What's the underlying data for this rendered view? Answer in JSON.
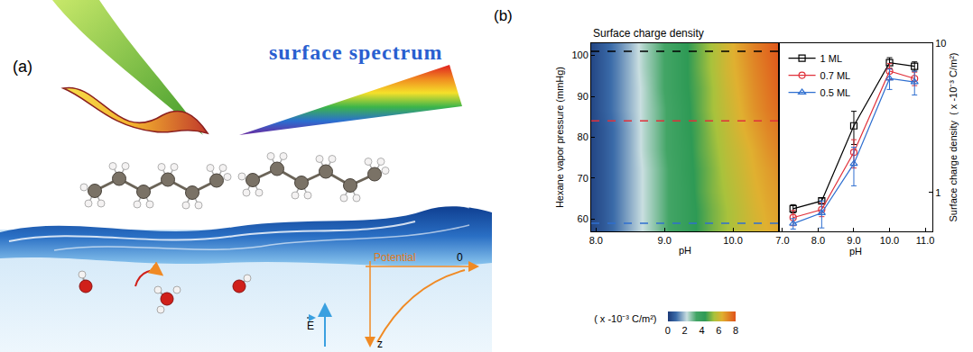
{
  "diagram": {
    "label": "(a)",
    "title": "surface spectrum",
    "potential_axis": {
      "label": "Potential",
      "zero": "0",
      "depth": "z"
    },
    "field": "E"
  },
  "chart_data": [
    {
      "type": "heatmap",
      "panel": "(b)",
      "title": "Surface charge density",
      "x_label": "pH",
      "y_label": "Hexane vapor pressure (mmHg)",
      "x": [
        7.9,
        8.1,
        8.3,
        8.5,
        8.7,
        8.9,
        9.1,
        9.3,
        9.5,
        9.7,
        9.9,
        10.1,
        10.3,
        10.5,
        10.7
      ],
      "y": [
        57,
        62,
        67,
        72,
        77,
        82,
        87,
        92,
        97,
        102
      ],
      "cells": [
        [
          0.2,
          0.6,
          1.1,
          1.7,
          2.3,
          2.9,
          3.5,
          4.0,
          4.5,
          5.0,
          5.4,
          5.8,
          6.1,
          6.4,
          6.6
        ],
        [
          0.2,
          0.6,
          1.1,
          1.7,
          2.3,
          2.9,
          3.5,
          4.0,
          4.5,
          5.0,
          5.4,
          5.8,
          6.2,
          6.5,
          6.7
        ],
        [
          0.2,
          0.6,
          1.1,
          1.7,
          2.3,
          2.9,
          3.5,
          4.0,
          4.6,
          5.1,
          5.5,
          5.9,
          6.3,
          6.6,
          6.8
        ],
        [
          0.2,
          0.6,
          1.1,
          1.7,
          2.3,
          2.9,
          3.5,
          4.1,
          4.6,
          5.1,
          5.6,
          6.0,
          6.4,
          6.7,
          7.0
        ],
        [
          0.2,
          0.6,
          1.1,
          1.7,
          2.4,
          3.0,
          3.6,
          4.1,
          4.7,
          5.2,
          5.7,
          6.1,
          6.5,
          6.9,
          7.2
        ],
        [
          0.2,
          0.6,
          1.1,
          1.7,
          2.4,
          3.0,
          3.6,
          4.2,
          4.7,
          5.3,
          5.8,
          6.3,
          6.7,
          7.1,
          7.4
        ],
        [
          0.2,
          0.7,
          1.2,
          1.8,
          2.4,
          3.0,
          3.6,
          4.2,
          4.8,
          5.4,
          5.9,
          6.4,
          6.9,
          7.3,
          7.6
        ],
        [
          0.2,
          0.7,
          1.2,
          1.8,
          2.4,
          3.1,
          3.7,
          4.3,
          4.8,
          5.4,
          6.0,
          6.5,
          7.0,
          7.4,
          7.8
        ],
        [
          0.2,
          0.7,
          1.2,
          1.8,
          2.5,
          3.1,
          3.7,
          4.3,
          4.9,
          5.5,
          6.1,
          6.6,
          7.1,
          7.5,
          7.9
        ],
        [
          0.2,
          0.7,
          1.2,
          1.8,
          2.5,
          3.1,
          3.7,
          4.3,
          4.9,
          5.5,
          6.1,
          6.7,
          7.2,
          7.6,
          8.0
        ]
      ],
      "xlim": [
        7.93,
        10.67
      ],
      "xticks": [
        {
          "value": 8,
          "label": "8.0"
        },
        {
          "value": 9,
          "label": "9.0"
        },
        {
          "value": 10,
          "label": "10.0"
        }
      ],
      "ylim": [
        57,
        103
      ],
      "yticks": [
        60,
        70,
        80,
        90,
        100
      ],
      "colorbar": {
        "range": [
          0,
          8
        ],
        "ticks": [
          0,
          2,
          4,
          6,
          8
        ],
        "label": "( x -10⁻³ C/m²)"
      },
      "reference_lines": [
        {
          "value": 101,
          "color": "#000000"
        },
        {
          "value": 84,
          "color": "#e0303a"
        },
        {
          "value": 59,
          "color": "#2f6fd0"
        }
      ],
      "line_style": "dash"
    },
    {
      "type": "scatter",
      "x_label": "pH",
      "y_label": "Surface charge density  ( x -10⁻³ C/m²)",
      "x": [
        7.3,
        8.1,
        9.0,
        10.0,
        10.7
      ],
      "series": [
        {
          "name": "1 ML",
          "color": "#000000",
          "marker": "square-open",
          "line_style": "solid",
          "values": [
            0.78,
            0.88,
            2.8,
            7.4,
            7.0
          ],
          "errors": [
            0.05,
            0.04,
            0.7,
            0.6,
            0.5
          ]
        },
        {
          "name": "0.7 ML",
          "color": "#e0303a",
          "marker": "circle-open",
          "line_style": "solid",
          "values": [
            0.68,
            0.77,
            1.86,
            6.5,
            5.8
          ],
          "errors": [
            0.08,
            0.08,
            0.4,
            0.8,
            0.6
          ]
        },
        {
          "name": "0.5 ML",
          "color": "#2f6fd0",
          "marker": "triangle-up-open",
          "line_style": "solid",
          "values": [
            0.62,
            0.73,
            1.56,
            5.8,
            5.5
          ],
          "errors": [
            0.05,
            0.15,
            0.45,
            0.9,
            1.0
          ]
        }
      ],
      "xlim": [
        6.9,
        11.2
      ],
      "xticks": [
        {
          "value": 7,
          "label": "7.0"
        },
        {
          "value": 8,
          "label": "8.0"
        },
        {
          "value": 9,
          "label": "9.0"
        },
        {
          "value": 10,
          "label": "10.0"
        },
        {
          "value": 11,
          "label": "11.0"
        }
      ],
      "ylim": [
        0.55,
        10
      ],
      "yticks": [
        1,
        10
      ],
      "log": "y",
      "legend": "upper left"
    }
  ]
}
